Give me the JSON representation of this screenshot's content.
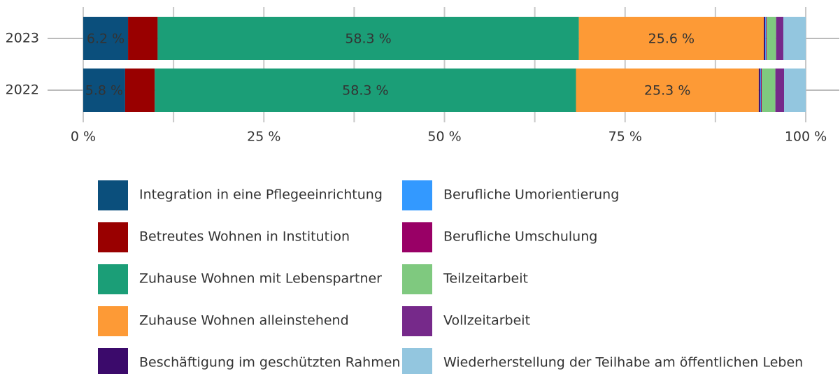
{
  "chart_data": {
    "type": "stacked_bar_horizontal",
    "categories": [
      "2023",
      "2022"
    ],
    "series": [
      {
        "name": "Integration in eine Pflegeeinrichtung",
        "color": "#0b4f7c",
        "values": [
          6.2,
          5.8
        ],
        "value_labels": [
          "6.2 %",
          "5.8 %"
        ]
      },
      {
        "name": "Betreutes Wohnen in Institution",
        "color": "#990000",
        "values": [
          4.1,
          4.1
        ]
      },
      {
        "name": "Zuhause Wohnen mit Lebenspartner",
        "color": "#1b9e77",
        "values": [
          58.3,
          58.3
        ],
        "value_labels": [
          "58.3 %",
          "58.3 %"
        ]
      },
      {
        "name": "Zuhause Wohnen alleinstehend",
        "color": "#fd9a36",
        "values": [
          25.6,
          25.3
        ],
        "value_labels": [
          "25.6 %",
          "25.3 %"
        ]
      },
      {
        "name": "Beschäftigung im geschützten Rahmen",
        "color": "#3b0a6b",
        "values": [
          0.2,
          0.2
        ]
      },
      {
        "name": "Berufliche Umorientierung",
        "color": "#3399ff",
        "values": [
          0.1,
          0.1
        ]
      },
      {
        "name": "Berufliche Umschulung",
        "color": "#990066",
        "values": [
          0.1,
          0.1
        ]
      },
      {
        "name": "Teilzeitarbeit",
        "color": "#7fc97f",
        "values": [
          1.3,
          1.9
        ]
      },
      {
        "name": "Vollzeitarbeit",
        "color": "#76298a",
        "values": [
          1.0,
          1.2
        ]
      },
      {
        "name": "Wiederherstellung der Teilhabe am öffentlichen Leben",
        "color": "#93c6df",
        "values": [
          3.1,
          3.0
        ]
      }
    ],
    "xlim": [
      0,
      100
    ],
    "xticks": [
      {
        "value": 0,
        "label": "0 %"
      },
      {
        "value": 25,
        "label": "25 %"
      },
      {
        "value": 50,
        "label": "50 %"
      },
      {
        "value": 75,
        "label": "75 %"
      },
      {
        "value": 100,
        "label": "100 %"
      }
    ],
    "grid": true
  }
}
